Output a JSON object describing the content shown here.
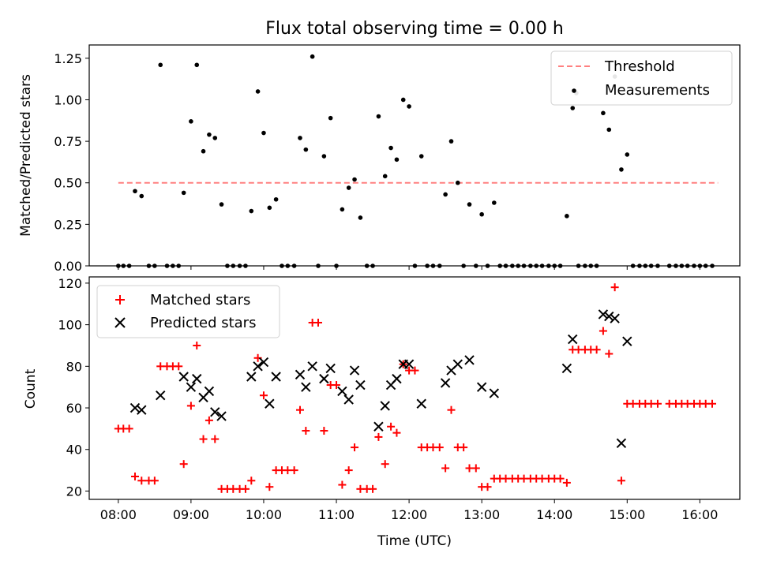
{
  "figure_title": "Flux total observing time = 0.00 h",
  "chart_data": [
    {
      "type": "scatter",
      "title": "Flux total observing time = 0.00 h",
      "xlabel": "",
      "ylabel": "Matched/Predicted stars",
      "x_range_hours": [
        7.6,
        16.55
      ],
      "ylim": [
        0,
        1.33
      ],
      "yticks": [
        0.0,
        0.25,
        0.5,
        0.75,
        1.0,
        1.25
      ],
      "ytick_labels": [
        "0.00",
        "0.25",
        "0.50",
        "0.75",
        "1.00",
        "1.25"
      ],
      "threshold": {
        "label": "Threshold",
        "value": 0.5,
        "x_start": 8.0,
        "x_end": 16.25,
        "color": "#ff8080"
      },
      "legend_position": "top-right",
      "series": [
        {
          "name": "Measurements",
          "color": "#000000",
          "points": [
            [
              8.0,
              0
            ],
            [
              8.07,
              0
            ],
            [
              8.15,
              0
            ],
            [
              8.23,
              0.45
            ],
            [
              8.32,
              0.42
            ],
            [
              8.42,
              0
            ],
            [
              8.5,
              0
            ],
            [
              8.58,
              1.21
            ],
            [
              8.67,
              0
            ],
            [
              8.75,
              0
            ],
            [
              8.83,
              0
            ],
            [
              8.9,
              0.44
            ],
            [
              9.0,
              0.87
            ],
            [
              9.08,
              1.21
            ],
            [
              9.17,
              0.69
            ],
            [
              9.25,
              0.79
            ],
            [
              9.33,
              0.77
            ],
            [
              9.42,
              0.37
            ],
            [
              9.5,
              0
            ],
            [
              9.58,
              0
            ],
            [
              9.67,
              0
            ],
            [
              9.75,
              0
            ],
            [
              9.83,
              0.33
            ],
            [
              9.92,
              1.05
            ],
            [
              10.0,
              0.8
            ],
            [
              10.08,
              0.35
            ],
            [
              10.17,
              0.4
            ],
            [
              10.25,
              0
            ],
            [
              10.33,
              0
            ],
            [
              10.42,
              0
            ],
            [
              10.5,
              0.77
            ],
            [
              10.58,
              0.7
            ],
            [
              10.67,
              1.26
            ],
            [
              10.75,
              0
            ],
            [
              10.83,
              0.66
            ],
            [
              10.92,
              0.89
            ],
            [
              11.0,
              0
            ],
            [
              11.08,
              0.34
            ],
            [
              11.17,
              0.47
            ],
            [
              11.25,
              0.52
            ],
            [
              11.33,
              0.29
            ],
            [
              11.42,
              0
            ],
            [
              11.5,
              0
            ],
            [
              11.58,
              0.9
            ],
            [
              11.67,
              0.54
            ],
            [
              11.75,
              0.71
            ],
            [
              11.83,
              0.64
            ],
            [
              11.92,
              1.0
            ],
            [
              12.0,
              0.96
            ],
            [
              12.08,
              0
            ],
            [
              12.17,
              0.66
            ],
            [
              12.25,
              0
            ],
            [
              12.33,
              0
            ],
            [
              12.42,
              0
            ],
            [
              12.5,
              0.43
            ],
            [
              12.58,
              0.75
            ],
            [
              12.67,
              0.5
            ],
            [
              12.75,
              0
            ],
            [
              12.83,
              0.37
            ],
            [
              12.92,
              0
            ],
            [
              13.0,
              0.31
            ],
            [
              13.08,
              0
            ],
            [
              13.17,
              0.38
            ],
            [
              13.25,
              0
            ],
            [
              13.33,
              0
            ],
            [
              13.42,
              0
            ],
            [
              13.5,
              0
            ],
            [
              13.58,
              0
            ],
            [
              13.67,
              0
            ],
            [
              13.75,
              0
            ],
            [
              13.83,
              0
            ],
            [
              13.92,
              0
            ],
            [
              14.0,
              0
            ],
            [
              14.08,
              0
            ],
            [
              14.17,
              0.3
            ],
            [
              14.25,
              0.95
            ],
            [
              14.3,
              1.04
            ],
            [
              14.33,
              0
            ],
            [
              14.42,
              0
            ],
            [
              14.5,
              0
            ],
            [
              14.58,
              0
            ],
            [
              14.67,
              0.92
            ],
            [
              14.75,
              0.82
            ],
            [
              14.83,
              1.14
            ],
            [
              14.92,
              0.58
            ],
            [
              15.0,
              0.67
            ],
            [
              15.08,
              0
            ],
            [
              15.17,
              0
            ],
            [
              15.25,
              0
            ],
            [
              15.33,
              0
            ],
            [
              15.42,
              0
            ],
            [
              15.58,
              0
            ],
            [
              15.67,
              0
            ],
            [
              15.75,
              0
            ],
            [
              15.83,
              0
            ],
            [
              15.92,
              0
            ],
            [
              16.0,
              0
            ],
            [
              16.08,
              0
            ],
            [
              16.17,
              0
            ]
          ]
        }
      ],
      "legend": [
        "Threshold",
        "Measurements"
      ]
    },
    {
      "type": "scatter",
      "title": "",
      "xlabel": "Time (UTC)",
      "ylabel": "Count",
      "x_range_hours": [
        7.6,
        16.55
      ],
      "ylim": [
        16,
        123
      ],
      "yticks": [
        20,
        40,
        60,
        80,
        100,
        120
      ],
      "ytick_labels": [
        "20",
        "40",
        "60",
        "80",
        "100",
        "120"
      ],
      "xticks": [
        8,
        9,
        10,
        11,
        12,
        13,
        14,
        15,
        16
      ],
      "xtick_labels": [
        "08:00",
        "09:00",
        "10:00",
        "11:00",
        "12:00",
        "13:00",
        "14:00",
        "15:00",
        "16:00"
      ],
      "legend_position": "top-left",
      "series": [
        {
          "name": "Matched stars",
          "marker": "plus",
          "color": "#ff0000",
          "points": [
            [
              8.0,
              50
            ],
            [
              8.07,
              50
            ],
            [
              8.15,
              50
            ],
            [
              8.23,
              27
            ],
            [
              8.32,
              25
            ],
            [
              8.42,
              25
            ],
            [
              8.5,
              25
            ],
            [
              8.58,
              80
            ],
            [
              8.67,
              80
            ],
            [
              8.75,
              80
            ],
            [
              8.83,
              80
            ],
            [
              8.9,
              33
            ],
            [
              9.0,
              61
            ],
            [
              9.08,
              90
            ],
            [
              9.17,
              45
            ],
            [
              9.25,
              54
            ],
            [
              9.33,
              45
            ],
            [
              9.42,
              21
            ],
            [
              9.5,
              21
            ],
            [
              9.58,
              21
            ],
            [
              9.67,
              21
            ],
            [
              9.75,
              21
            ],
            [
              9.83,
              25
            ],
            [
              9.92,
              84
            ],
            [
              10.0,
              66
            ],
            [
              10.08,
              22
            ],
            [
              10.17,
              30
            ],
            [
              10.25,
              30
            ],
            [
              10.33,
              30
            ],
            [
              10.42,
              30
            ],
            [
              10.5,
              59
            ],
            [
              10.58,
              49
            ],
            [
              10.67,
              101
            ],
            [
              10.75,
              101
            ],
            [
              10.83,
              49
            ],
            [
              10.92,
              71
            ],
            [
              11.0,
              71
            ],
            [
              11.08,
              23
            ],
            [
              11.17,
              30
            ],
            [
              11.25,
              41
            ],
            [
              11.33,
              21
            ],
            [
              11.42,
              21
            ],
            [
              11.5,
              21
            ],
            [
              11.58,
              46
            ],
            [
              11.67,
              33
            ],
            [
              11.75,
              51
            ],
            [
              11.83,
              48
            ],
            [
              11.92,
              81
            ],
            [
              12.0,
              78
            ],
            [
              12.08,
              78
            ],
            [
              12.17,
              41
            ],
            [
              12.25,
              41
            ],
            [
              12.33,
              41
            ],
            [
              12.42,
              41
            ],
            [
              12.5,
              31
            ],
            [
              12.58,
              59
            ],
            [
              12.67,
              41
            ],
            [
              12.75,
              41
            ],
            [
              12.83,
              31
            ],
            [
              12.92,
              31
            ],
            [
              13.0,
              22
            ],
            [
              13.08,
              22
            ],
            [
              13.17,
              26
            ],
            [
              13.25,
              26
            ],
            [
              13.33,
              26
            ],
            [
              13.42,
              26
            ],
            [
              13.5,
              26
            ],
            [
              13.58,
              26
            ],
            [
              13.67,
              26
            ],
            [
              13.75,
              26
            ],
            [
              13.83,
              26
            ],
            [
              13.92,
              26
            ],
            [
              14.0,
              26
            ],
            [
              14.08,
              26
            ],
            [
              14.17,
              24
            ],
            [
              14.25,
              88
            ],
            [
              14.33,
              88
            ],
            [
              14.42,
              88
            ],
            [
              14.5,
              88
            ],
            [
              14.58,
              88
            ],
            [
              14.67,
              97
            ],
            [
              14.75,
              86
            ],
            [
              14.83,
              118
            ],
            [
              14.92,
              25
            ],
            [
              15.0,
              62
            ],
            [
              15.08,
              62
            ],
            [
              15.17,
              62
            ],
            [
              15.25,
              62
            ],
            [
              15.33,
              62
            ],
            [
              15.42,
              62
            ],
            [
              15.58,
              62
            ],
            [
              15.67,
              62
            ],
            [
              15.75,
              62
            ],
            [
              15.83,
              62
            ],
            [
              15.92,
              62
            ],
            [
              16.0,
              62
            ],
            [
              16.08,
              62
            ],
            [
              16.17,
              62
            ]
          ]
        },
        {
          "name": "Predicted stars",
          "marker": "x",
          "color": "#000000",
          "points": [
            [
              8.23,
              60
            ],
            [
              8.32,
              59
            ],
            [
              8.58,
              66
            ],
            [
              8.9,
              75
            ],
            [
              9.0,
              70
            ],
            [
              9.08,
              74
            ],
            [
              9.17,
              65
            ],
            [
              9.25,
              68
            ],
            [
              9.33,
              58
            ],
            [
              9.42,
              56
            ],
            [
              9.83,
              75
            ],
            [
              9.92,
              80
            ],
            [
              10.0,
              82
            ],
            [
              10.08,
              62
            ],
            [
              10.17,
              75
            ],
            [
              10.5,
              76
            ],
            [
              10.58,
              70
            ],
            [
              10.67,
              80
            ],
            [
              10.83,
              74
            ],
            [
              10.92,
              79
            ],
            [
              11.08,
              68
            ],
            [
              11.17,
              64
            ],
            [
              11.25,
              78
            ],
            [
              11.33,
              71
            ],
            [
              11.58,
              51
            ],
            [
              11.67,
              61
            ],
            [
              11.75,
              71
            ],
            [
              11.83,
              74
            ],
            [
              11.92,
              81
            ],
            [
              12.0,
              81
            ],
            [
              12.17,
              62
            ],
            [
              12.5,
              72
            ],
            [
              12.58,
              78
            ],
            [
              12.67,
              81
            ],
            [
              12.83,
              83
            ],
            [
              13.0,
              70
            ],
            [
              13.17,
              67
            ],
            [
              14.17,
              79
            ],
            [
              14.25,
              93
            ],
            [
              14.67,
              105
            ],
            [
              14.75,
              104
            ],
            [
              14.83,
              103
            ],
            [
              14.92,
              43
            ],
            [
              15.0,
              92
            ]
          ]
        }
      ],
      "legend": [
        "Matched stars",
        "Predicted stars"
      ]
    }
  ]
}
